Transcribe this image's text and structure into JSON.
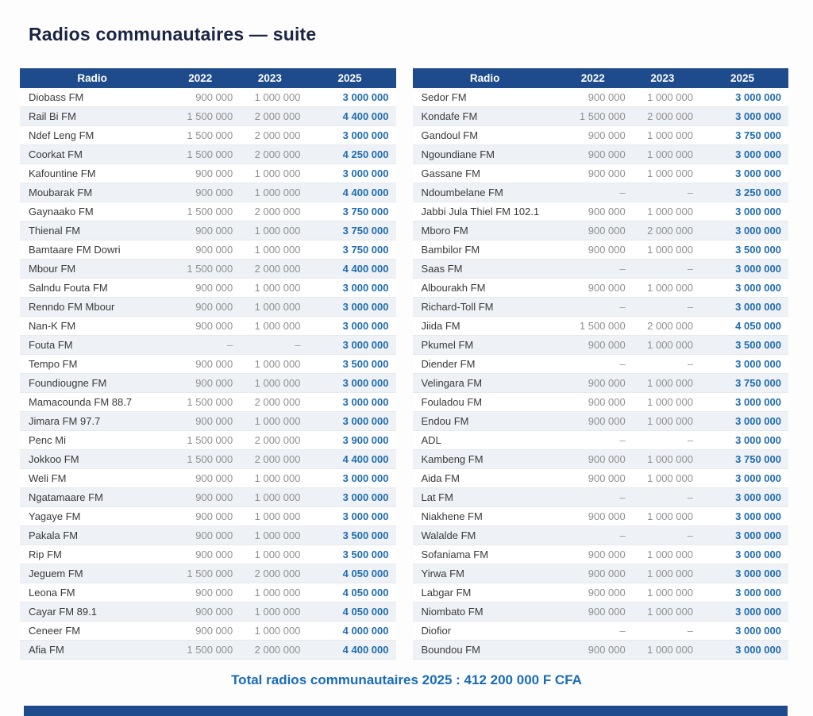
{
  "title": "Radios communautaires — suite",
  "columns": [
    "Radio",
    "2022",
    "2023",
    "2025"
  ],
  "colors": {
    "header_bg": "#1e4b8c",
    "header_text": "#ffffff",
    "value_2025_blue": "#1f6cb0",
    "total_blue": "#1a6bb8",
    "title_navy": "#1b2444",
    "muted_value_gray": "#8f9092",
    "row_stripe": "#eef1f5"
  },
  "tables": {
    "left": {
      "rows": [
        [
          "Diobass FM",
          "900 000",
          "1 000 000",
          "3 000 000"
        ],
        [
          "Rail Bi FM",
          "1 500 000",
          "2 000 000",
          "4 400 000"
        ],
        [
          "Ndef Leng FM",
          "1 500 000",
          "2 000 000",
          "3 000 000"
        ],
        [
          "Coorkat FM",
          "1 500 000",
          "2 000 000",
          "4 250 000"
        ],
        [
          "Kafountine FM",
          "900 000",
          "1 000 000",
          "3 000 000"
        ],
        [
          "Moubarak FM",
          "900 000",
          "1 000 000",
          "4 400 000"
        ],
        [
          "Gaynaako FM",
          "1 500 000",
          "2 000 000",
          "3 750 000"
        ],
        [
          "Thienal FM",
          "900 000",
          "1 000 000",
          "3 750 000"
        ],
        [
          "Bamtaare FM Dowri",
          "900 000",
          "1 000 000",
          "3 750 000"
        ],
        [
          "Mbour FM",
          "1 500 000",
          "2 000 000",
          "4 400 000"
        ],
        [
          "Salndu Fouta FM",
          "900 000",
          "1 000 000",
          "3 000 000"
        ],
        [
          "Renndo FM Mbour",
          "900 000",
          "1 000 000",
          "3 000 000"
        ],
        [
          "Nan-K FM",
          "900 000",
          "1 000 000",
          "3 000 000"
        ],
        [
          "Fouta FM",
          "–",
          "–",
          "3 000 000"
        ],
        [
          "Tempo FM",
          "900 000",
          "1 000 000",
          "3 500 000"
        ],
        [
          "Foundiougne FM",
          "900 000",
          "1 000 000",
          "3 000 000"
        ],
        [
          "Mamacounda FM 88.7",
          "1 500 000",
          "2 000 000",
          "3 000 000"
        ],
        [
          "Jimara FM 97.7",
          "900 000",
          "1 000 000",
          "3 000 000"
        ],
        [
          "Penc Mi",
          "1 500 000",
          "2 000 000",
          "3 900 000"
        ],
        [
          "Jokkoo FM",
          "1 500 000",
          "2 000 000",
          "4 400 000"
        ],
        [
          "Weli FM",
          "900 000",
          "1 000 000",
          "3 000 000"
        ],
        [
          "Ngatamaare FM",
          "900 000",
          "1 000 000",
          "3 000 000"
        ],
        [
          "Yagaye FM",
          "900 000",
          "1 000 000",
          "3 000 000"
        ],
        [
          "Pakala FM",
          "900 000",
          "1 000 000",
          "3 500 000"
        ],
        [
          "Rip FM",
          "900 000",
          "1 000 000",
          "3 500 000"
        ],
        [
          "Jeguem FM",
          "1 500 000",
          "2 000 000",
          "4 050 000"
        ],
        [
          "Leona FM",
          "900 000",
          "1 000 000",
          "4 050 000"
        ],
        [
          "Cayar FM 89.1",
          "900 000",
          "1 000 000",
          "4 050 000"
        ],
        [
          "Ceneer FM",
          "900 000",
          "1 000 000",
          "4 000 000"
        ],
        [
          "Afia FM",
          "1 500 000",
          "2 000 000",
          "4 400 000"
        ]
      ]
    },
    "right": {
      "rows": [
        [
          "Sedor FM",
          "900 000",
          "1 000 000",
          "3 000 000"
        ],
        [
          "Kondafe FM",
          "1 500 000",
          "2 000 000",
          "3 000 000"
        ],
        [
          "Gandoul FM",
          "900 000",
          "1 000 000",
          "3 750 000"
        ],
        [
          "Ngoundiane FM",
          "900 000",
          "1 000 000",
          "3 000 000"
        ],
        [
          "Gassane FM",
          "900 000",
          "1 000 000",
          "3 000 000"
        ],
        [
          "Ndoumbelane FM",
          "–",
          "–",
          "3 250 000"
        ],
        [
          "Jabbi Jula Thiel FM 102.1",
          "900 000",
          "1 000 000",
          "3 000 000"
        ],
        [
          "Mboro FM",
          "900 000",
          "2 000 000",
          "3 000 000"
        ],
        [
          "Bambilor FM",
          "900 000",
          "1 000 000",
          "3 500 000"
        ],
        [
          "Saas FM",
          "–",
          "–",
          "3 000 000"
        ],
        [
          "Albourakh FM",
          "900 000",
          "1 000 000",
          "3 000 000"
        ],
        [
          "Richard-Toll FM",
          "–",
          "–",
          "3 000 000"
        ],
        [
          "Jiida FM",
          "1 500 000",
          "2 000 000",
          "4 050 000"
        ],
        [
          "Pkumel FM",
          "900 000",
          "1 000 000",
          "3 500 000"
        ],
        [
          "Diender FM",
          "–",
          "–",
          "3 000 000"
        ],
        [
          "Velingara FM",
          "900 000",
          "1 000 000",
          "3 750 000"
        ],
        [
          "Fouladou FM",
          "900 000",
          "1 000 000",
          "3 000 000"
        ],
        [
          "Endou FM",
          "900 000",
          "1 000 000",
          "3 000 000"
        ],
        [
          "ADL",
          "–",
          "–",
          "3 000 000"
        ],
        [
          "Kambeng FM",
          "900 000",
          "1 000 000",
          "3 750 000"
        ],
        [
          "Aida FM",
          "900 000",
          "1 000 000",
          "3 000 000"
        ],
        [
          "Lat FM",
          "–",
          "–",
          "3 000 000"
        ],
        [
          "Niakhene FM",
          "900 000",
          "1 000 000",
          "3 000 000"
        ],
        [
          "Walalde FM",
          "–",
          "–",
          "3 000 000"
        ],
        [
          "Sofaniama FM",
          "900 000",
          "1 000 000",
          "3 000 000"
        ],
        [
          "Yirwa FM",
          "900 000",
          "1 000 000",
          "3 000 000"
        ],
        [
          "Labgar FM",
          "900 000",
          "1 000 000",
          "3 000 000"
        ],
        [
          "Niombato FM",
          "900 000",
          "1 000 000",
          "3 000 000"
        ],
        [
          "Diofior",
          "–",
          "–",
          "3 000 000"
        ],
        [
          "Boundou FM",
          "900 000",
          "1 000 000",
          "3 000 000"
        ]
      ]
    }
  },
  "total_label": "Total radios communautaires 2025 : 412 200 000 F CFA"
}
